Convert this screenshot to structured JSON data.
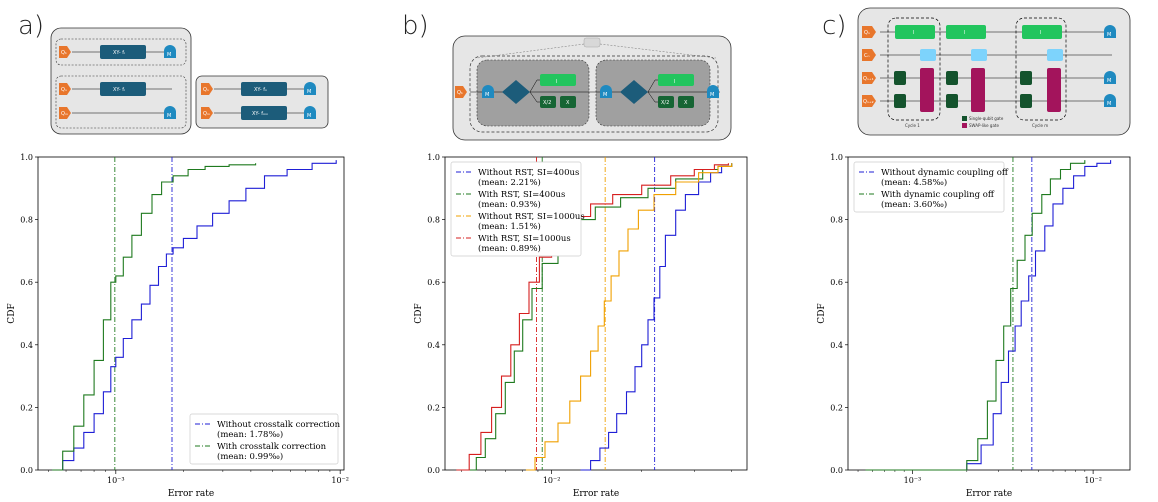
{
  "panels": [
    {
      "label": "a)",
      "schematic": {
        "qubit_labels": [
          "Q₁",
          "Qₙ",
          "Qₘ",
          "Qₙ",
          "Qₘ"
        ],
        "gate_labels": [
          "XY- fᵢ",
          "XY- fᵢ",
          "XY- fₙ",
          "XY- fₘₙ"
        ],
        "measure_label": "M"
      },
      "chart_data": {
        "type": "line",
        "xscale": "log",
        "xlim": [
          0.00045,
          0.0104
        ],
        "ylim": [
          0,
          1.0
        ],
        "xlabel": "Error rate",
        "ylabel": "CDF",
        "xticks": [
          0.001,
          0.01
        ],
        "xtick_labels": [
          "10⁻³",
          "10⁻²"
        ],
        "yticks": [
          0.0,
          0.2,
          0.4,
          0.6,
          0.8,
          1.0
        ],
        "ytick_labels": [
          "0.0",
          "0.2",
          "0.4",
          "0.6",
          "0.8",
          "1.0"
        ],
        "legend_position": "lower-right",
        "series": [
          {
            "name": "Without crosstalk correction",
            "mean_label": "(mean: 1.78‰)",
            "color": "#1f1fd6",
            "mean": 0.00178,
            "points": [
              [
                0.00052,
                0.0
              ],
              [
                0.00058,
                0.03
              ],
              [
                0.00065,
                0.07
              ],
              [
                0.00072,
                0.12
              ],
              [
                0.0008,
                0.18
              ],
              [
                0.00088,
                0.25
              ],
              [
                0.00095,
                0.33
              ],
              [
                0.001,
                0.36
              ],
              [
                0.00108,
                0.42
              ],
              [
                0.00118,
                0.48
              ],
              [
                0.0013,
                0.53
              ],
              [
                0.00142,
                0.59
              ],
              [
                0.00155,
                0.65
              ],
              [
                0.00168,
                0.69
              ],
              [
                0.0018,
                0.71
              ],
              [
                0.002,
                0.74
              ],
              [
                0.0023,
                0.78
              ],
              [
                0.0027,
                0.82
              ],
              [
                0.0032,
                0.86
              ],
              [
                0.0038,
                0.9
              ],
              [
                0.0046,
                0.94
              ],
              [
                0.0058,
                0.96
              ],
              [
                0.0075,
                0.98
              ],
              [
                0.0096,
                0.99
              ]
            ]
          },
          {
            "name": "With crosstalk correction",
            "mean_label": "(mean: 0.99‰)",
            "color": "#1f7a1f",
            "mean": 0.00099,
            "points": [
              [
                0.00052,
                0.0
              ],
              [
                0.00058,
                0.06
              ],
              [
                0.00065,
                0.14
              ],
              [
                0.00072,
                0.24
              ],
              [
                0.0008,
                0.35
              ],
              [
                0.00088,
                0.48
              ],
              [
                0.00095,
                0.6
              ],
              [
                0.001,
                0.62
              ],
              [
                0.00108,
                0.68
              ],
              [
                0.00118,
                0.75
              ],
              [
                0.0013,
                0.82
              ],
              [
                0.00145,
                0.88
              ],
              [
                0.0016,
                0.92
              ],
              [
                0.0018,
                0.94
              ],
              [
                0.0021,
                0.96
              ],
              [
                0.0025,
                0.97
              ],
              [
                0.0032,
                0.975
              ],
              [
                0.0042,
                0.98
              ]
            ]
          }
        ]
      }
    },
    {
      "label": "b)",
      "schematic": {
        "qubit_label": "Q₁",
        "gate_labels": [
          "I",
          "X/2",
          "X",
          "I",
          "X/2",
          "X"
        ],
        "measure_label": "M"
      },
      "chart_data": {
        "type": "line",
        "xscale": "log",
        "xlim": [
          0.0044,
          0.045
        ],
        "ylim": [
          0,
          1.0
        ],
        "xlabel": "Error rate",
        "ylabel": "CDF",
        "xticks": [
          0.01
        ],
        "xtick_labels": [
          "10⁻²"
        ],
        "yticks": [
          0.0,
          0.2,
          0.4,
          0.6,
          0.8,
          1.0
        ],
        "ytick_labels": [
          "0.0",
          "0.2",
          "0.4",
          "0.6",
          "0.8",
          "1.0"
        ],
        "legend_position": "upper-left",
        "series": [
          {
            "name": "Without RST, SI=400us",
            "mean_label": "(mean: 2.21%)",
            "color": "#1f1fd6",
            "mean": 0.0221,
            "points": [
              [
                0.0125,
                0.0
              ],
              [
                0.0135,
                0.03
              ],
              [
                0.0145,
                0.07
              ],
              [
                0.0155,
                0.12
              ],
              [
                0.0165,
                0.18
              ],
              [
                0.0178,
                0.25
              ],
              [
                0.019,
                0.33
              ],
              [
                0.02,
                0.4
              ],
              [
                0.021,
                0.48
              ],
              [
                0.022,
                0.55
              ],
              [
                0.023,
                0.65
              ],
              [
                0.024,
                0.75
              ],
              [
                0.026,
                0.83
              ],
              [
                0.028,
                0.88
              ],
              [
                0.031,
                0.92
              ],
              [
                0.034,
                0.95
              ],
              [
                0.037,
                0.97
              ],
              [
                0.04,
                0.98
              ]
            ]
          },
          {
            "name": "With RST, SI=400us",
            "mean_label": "(mean: 0.93%)",
            "color": "#1f7a1f",
            "mean": 0.0093,
            "points": [
              [
                0.0052,
                0.0
              ],
              [
                0.0056,
                0.04
              ],
              [
                0.006,
                0.1
              ],
              [
                0.0065,
                0.18
              ],
              [
                0.007,
                0.28
              ],
              [
                0.0075,
                0.38
              ],
              [
                0.008,
                0.48
              ],
              [
                0.0086,
                0.58
              ],
              [
                0.0093,
                0.66
              ],
              [
                0.0105,
                0.74
              ],
              [
                0.012,
                0.8
              ],
              [
                0.014,
                0.84
              ],
              [
                0.017,
                0.87
              ],
              [
                0.021,
                0.9
              ],
              [
                0.026,
                0.93
              ],
              [
                0.032,
                0.96
              ],
              [
                0.036,
                0.97
              ],
              [
                0.04,
                0.98
              ]
            ]
          },
          {
            "name": "Without RST, SI=1000us",
            "mean_label": "(mean: 1.51%)",
            "color": "#f0a000",
            "mean": 0.0151,
            "points": [
              [
                0.0082,
                0.0
              ],
              [
                0.0088,
                0.04
              ],
              [
                0.0095,
                0.09
              ],
              [
                0.0105,
                0.15
              ],
              [
                0.0115,
                0.22
              ],
              [
                0.0125,
                0.3
              ],
              [
                0.0135,
                0.38
              ],
              [
                0.0143,
                0.46
              ],
              [
                0.015,
                0.54
              ],
              [
                0.0158,
                0.62
              ],
              [
                0.0168,
                0.7
              ],
              [
                0.018,
                0.77
              ],
              [
                0.0195,
                0.83
              ],
              [
                0.022,
                0.88
              ],
              [
                0.026,
                0.92
              ],
              [
                0.031,
                0.95
              ],
              [
                0.036,
                0.97
              ],
              [
                0.04,
                0.98
              ]
            ]
          },
          {
            "name": "With RST, SI=1000us",
            "mean_label": "(mean: 0.89%)",
            "color": "#d61f1f",
            "mean": 0.0089,
            "points": [
              [
                0.0048,
                0.0
              ],
              [
                0.0053,
                0.05
              ],
              [
                0.0058,
                0.12
              ],
              [
                0.0063,
                0.2
              ],
              [
                0.0068,
                0.3
              ],
              [
                0.0073,
                0.4
              ],
              [
                0.0078,
                0.5
              ],
              [
                0.0084,
                0.6
              ],
              [
                0.0091,
                0.68
              ],
              [
                0.01,
                0.75
              ],
              [
                0.0115,
                0.81
              ],
              [
                0.0135,
                0.85
              ],
              [
                0.016,
                0.88
              ],
              [
                0.02,
                0.91
              ],
              [
                0.025,
                0.94
              ],
              [
                0.03,
                0.96
              ],
              [
                0.035,
                0.975
              ],
              [
                0.039,
                0.98
              ]
            ]
          }
        ]
      }
    },
    {
      "label": "c)",
      "schematic": {
        "qubit_labels": [
          "Qₙ",
          "Cₙ",
          "Qₙ₊₁",
          "Qₙ₊₂"
        ],
        "gate_labels": [
          "I",
          "I",
          "I"
        ],
        "legend": [
          "Single-qubit gate",
          "SWAP-like gate"
        ],
        "cycle_labels": [
          "Cycle 1",
          "Cycle m"
        ],
        "measure_label": "M"
      },
      "chart_data": {
        "type": "line",
        "xscale": "log",
        "xlim": [
          0.00044,
          0.016
        ],
        "ylim": [
          0,
          1.0
        ],
        "xlabel": "Error rate",
        "ylabel": "CDF",
        "xticks": [
          0.001,
          0.01
        ],
        "xtick_labels": [
          "10⁻³",
          "10⁻²"
        ],
        "yticks": [
          0.0,
          0.2,
          0.4,
          0.6,
          0.8,
          1.0
        ],
        "ytick_labels": [
          "0.0",
          "0.2",
          "0.4",
          "0.6",
          "0.8",
          "1.0"
        ],
        "legend_position": "upper-left",
        "series": [
          {
            "name": "Without dynamic coupling off",
            "mean_label": "(mean: 4.58‰)",
            "color": "#1f1fd6",
            "mean": 0.00458,
            "points": [
              [
                0.00055,
                0.0
              ],
              [
                0.0016,
                0.0
              ],
              [
                0.002,
                0.02
              ],
              [
                0.0024,
                0.08
              ],
              [
                0.0028,
                0.18
              ],
              [
                0.0031,
                0.28
              ],
              [
                0.0034,
                0.38
              ],
              [
                0.0037,
                0.46
              ],
              [
                0.004,
                0.54
              ],
              [
                0.0044,
                0.62
              ],
              [
                0.0048,
                0.7
              ],
              [
                0.0054,
                0.78
              ],
              [
                0.006,
                0.85
              ],
              [
                0.0068,
                0.9
              ],
              [
                0.0078,
                0.94
              ],
              [
                0.009,
                0.97
              ],
              [
                0.0105,
                0.98
              ],
              [
                0.0125,
                0.99
              ]
            ]
          },
          {
            "name": "With dynamic coupling off",
            "mean_label": "(mean: 3.60‰)",
            "color": "#1f7a1f",
            "mean": 0.0036,
            "points": [
              [
                0.00055,
                0.0
              ],
              [
                0.0016,
                0.0
              ],
              [
                0.002,
                0.03
              ],
              [
                0.0023,
                0.1
              ],
              [
                0.0026,
                0.22
              ],
              [
                0.0029,
                0.35
              ],
              [
                0.0032,
                0.46
              ],
              [
                0.0035,
                0.58
              ],
              [
                0.0038,
                0.67
              ],
              [
                0.0042,
                0.75
              ],
              [
                0.0046,
                0.82
              ],
              [
                0.0052,
                0.88
              ],
              [
                0.0058,
                0.93
              ],
              [
                0.0066,
                0.96
              ],
              [
                0.0075,
                0.98
              ],
              [
                0.009,
                0.99
              ]
            ]
          }
        ]
      }
    }
  ]
}
